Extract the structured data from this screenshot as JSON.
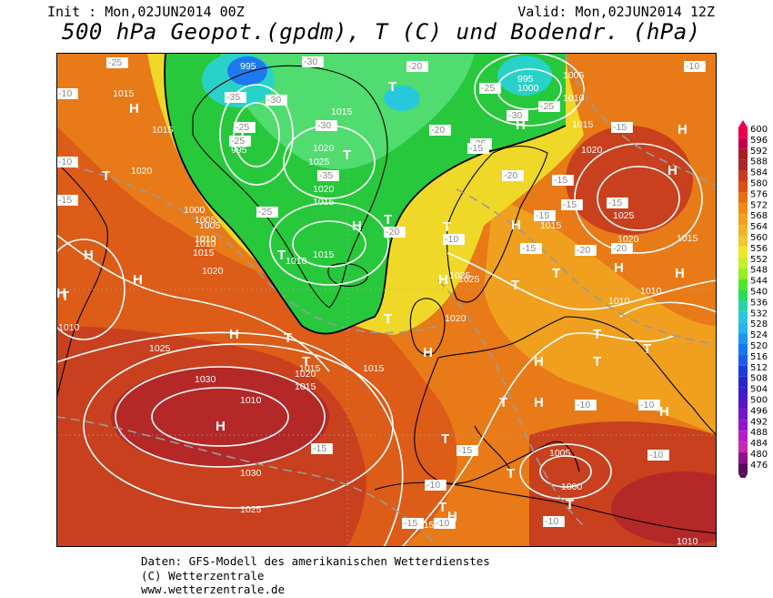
{
  "header": {
    "init": "Init : Mon,02JUN2014 00Z",
    "valid": "Valid: Mon,02JUN2014 12Z",
    "title": "500 hPa Geopot.(gpdm), T (C) und Bodendr. (hPa)"
  },
  "footer": {
    "line1": "Daten: GFS-Modell des amerikanischen Wetterdienstes",
    "line2": "(C) Wetterzentrale",
    "line3": "www.wetterzentrale.de"
  },
  "colorbar": {
    "levels": [
      "600",
      "596",
      "592",
      "588",
      "584",
      "580",
      "576",
      "572",
      "568",
      "564",
      "560",
      "556",
      "552",
      "548",
      "544",
      "540",
      "536",
      "532",
      "528",
      "524",
      "520",
      "516",
      "512",
      "508",
      "504",
      "500",
      "496",
      "492",
      "488",
      "484",
      "480",
      "476"
    ],
    "colors": [
      "#e8004a",
      "#c4004a",
      "#a81e1e",
      "#a82828",
      "#c83c1e",
      "#dc5014",
      "#e86e14",
      "#f08c14",
      "#f0a01e",
      "#f0b428",
      "#f0c832",
      "#f0e628",
      "#c8f028",
      "#96f01e",
      "#50e628",
      "#28dc5a",
      "#28d2aa",
      "#28c8dc",
      "#28b4f0",
      "#1e96f0",
      "#1478f0",
      "#1e5af0",
      "#1e3cdc",
      "#2828c8",
      "#3c1ec8",
      "#5a14c8",
      "#7814c8",
      "#9614c8",
      "#b41ec8",
      "#c828b4",
      "#8c148c",
      "#5a0a5a"
    ]
  },
  "map_labels": {
    "H": [
      "H",
      "H",
      "H",
      "H",
      "H",
      "H",
      "H",
      "H",
      "H",
      "H",
      "H",
      "H",
      "H",
      "H",
      "H",
      "H",
      "H",
      "H",
      "H"
    ],
    "T": [
      "T",
      "T",
      "T",
      "T",
      "T",
      "T",
      "T",
      "T",
      "T",
      "T",
      "T",
      "T",
      "T",
      "T",
      "T",
      "T",
      "T",
      "T",
      "T",
      "T",
      "T"
    ],
    "pressure": [
      "1010",
      "1015",
      "1020",
      "1015",
      "1005",
      "1010",
      "1000",
      "1005",
      "1010",
      "1015",
      "1020",
      "995",
      "995",
      "1015",
      "1020",
      "1025",
      "1020",
      "1015",
      "1010",
      "1015",
      "1010",
      "1025",
      "1020",
      "1015",
      "1030",
      "1025",
      "1030",
      "1025",
      "1010",
      "1015",
      "995",
      "1000",
      "1005",
      "1010",
      "1015",
      "1020",
      "1025",
      "1020",
      "1015",
      "1010",
      "1025",
      "1020",
      "1015",
      "1010",
      "1005",
      "1000",
      "1015",
      "1005",
      "1010",
      "1015"
    ],
    "temperature": [
      "-25",
      "-10",
      "-10",
      "-15",
      "-30",
      "-35",
      "-30",
      "-25",
      "-25",
      "-30",
      "-35",
      "-20",
      "-25",
      "-30",
      "-25",
      "-20",
      "-25",
      "-15",
      "-10",
      "-25",
      "-20",
      "-20",
      "-15",
      "-15",
      "-15",
      "-10",
      "-15",
      "-15",
      "-20",
      "-20",
      "-15",
      "-10",
      "-10",
      "-15",
      "-15",
      "-10",
      "-10",
      "-10",
      "-10",
      "-15"
    ]
  }
}
